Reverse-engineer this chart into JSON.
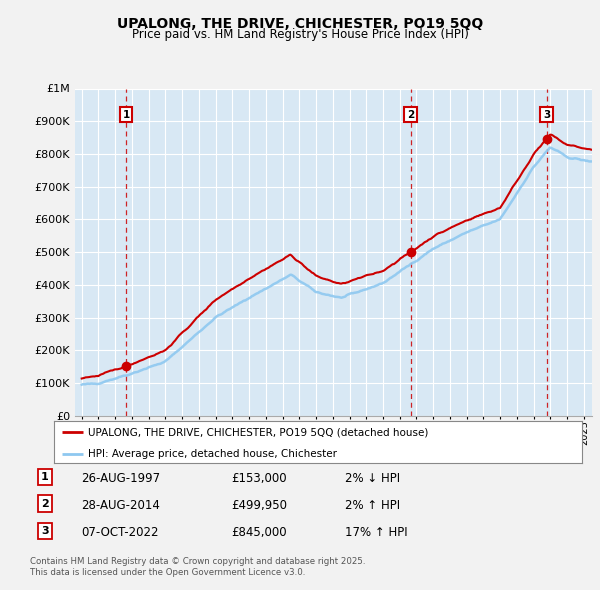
{
  "title": "UPALONG, THE DRIVE, CHICHESTER, PO19 5QQ",
  "subtitle": "Price paid vs. HM Land Registry's House Price Index (HPI)",
  "sale_dates": [
    1997.65,
    2014.65,
    2022.77
  ],
  "sale_prices": [
    153000,
    499950,
    845000
  ],
  "sale_labels": [
    "1",
    "2",
    "3"
  ],
  "legend_line1": "UPALONG, THE DRIVE, CHICHESTER, PO19 5QQ (detached house)",
  "legend_line2": "HPI: Average price, detached house, Chichester",
  "table_rows": [
    [
      "1",
      "26-AUG-1997",
      "£153,000",
      "2% ↓ HPI"
    ],
    [
      "2",
      "28-AUG-2014",
      "£499,950",
      "2% ↑ HPI"
    ],
    [
      "3",
      "07-OCT-2022",
      "£845,000",
      "17% ↑ HPI"
    ]
  ],
  "footnote1": "Contains HM Land Registry data © Crown copyright and database right 2025.",
  "footnote2": "This data is licensed under the Open Government Licence v3.0.",
  "hpi_color": "#8ec8f0",
  "price_color": "#cc0000",
  "dashed_line_color": "#cc0000",
  "background_color": "#d8e8f4",
  "fig_bg_color": "#f2f2f2",
  "grid_color": "#ffffff",
  "ylim": [
    0,
    1000000
  ],
  "xlim": [
    1994.6,
    2025.5
  ],
  "yticks": [
    0,
    100000,
    200000,
    300000,
    400000,
    500000,
    600000,
    700000,
    800000,
    900000,
    1000000
  ]
}
